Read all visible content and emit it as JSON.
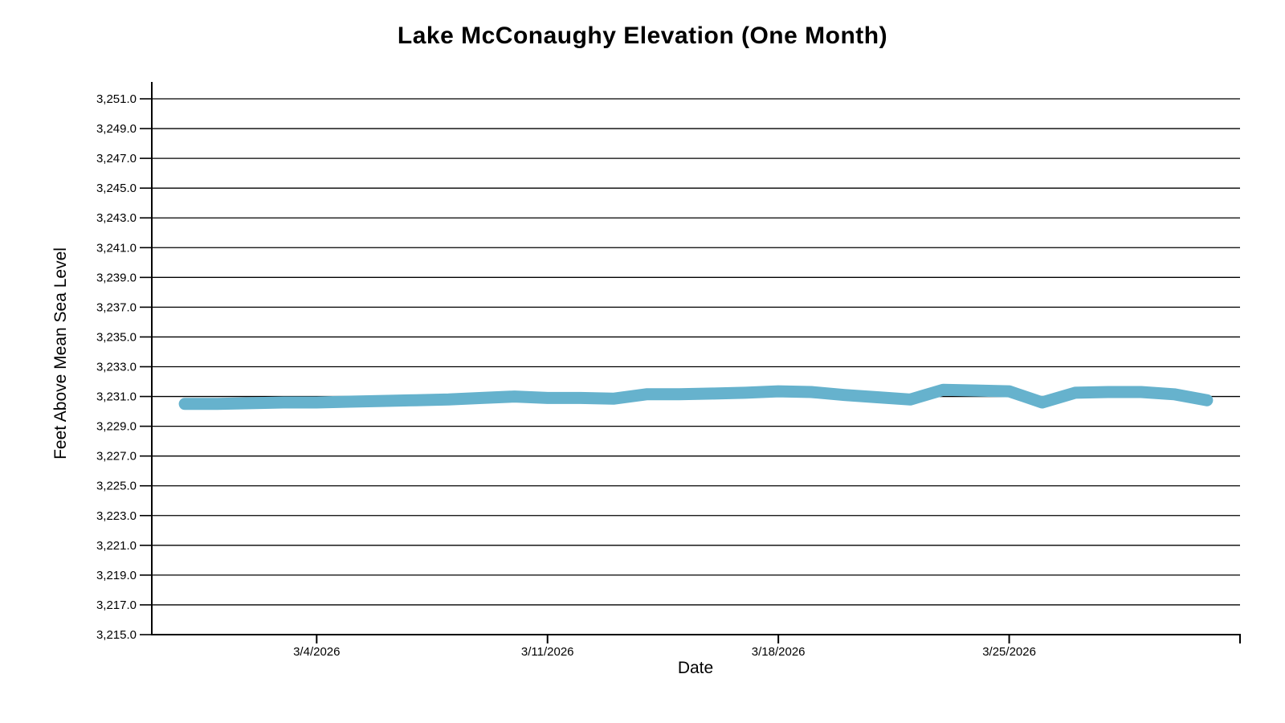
{
  "chart_data": {
    "type": "line",
    "title": "Lake McConaughy Elevation (One Month)",
    "xlabel": "Date",
    "ylabel": "Feet Above Mean Sea Level",
    "legend": "none",
    "grid": "horizontal",
    "colors": {
      "line": "#66b2cd",
      "grid": "#000000",
      "axis": "#000000",
      "text": "#000000",
      "background": "#ffffff"
    },
    "y_axis": {
      "min": 3215,
      "max": 3251,
      "step": 2,
      "tick_labels": [
        "3,215.0",
        "3,217.0",
        "3,219.0",
        "3,221.0",
        "3,223.0",
        "3,225.0",
        "3,227.0",
        "3,229.0",
        "3,231.0",
        "3,233.0",
        "3,235.0",
        "3,237.0",
        "3,239.0",
        "3,241.0",
        "3,243.0",
        "3,245.0",
        "3,247.0",
        "3,249.0",
        "3,251.0"
      ]
    },
    "x_axis": {
      "start_date": "2/27/2026",
      "end_date": "4/1/2026",
      "total_days": 33,
      "ticks": [
        {
          "label": "3/4/2026",
          "day": 5
        },
        {
          "label": "3/11/2026",
          "day": 12
        },
        {
          "label": "3/18/2026",
          "day": 19
        },
        {
          "label": "3/25/2026",
          "day": 26
        }
      ],
      "end_tick_day": 33
    },
    "series": [
      {
        "name": "Lake McConaughy Elevation",
        "color": "#66b2cd",
        "first_point_day": 1,
        "dates": [
          "2/28/2026",
          "3/1/2026",
          "3/2/2026",
          "3/3/2026",
          "3/4/2026",
          "3/5/2026",
          "3/6/2026",
          "3/7/2026",
          "3/8/2026",
          "3/9/2026",
          "3/10/2026",
          "3/11/2026",
          "3/12/2026",
          "3/13/2026",
          "3/14/2026",
          "3/15/2026",
          "3/16/2026",
          "3/17/2026",
          "3/18/2026",
          "3/19/2026",
          "3/20/2026",
          "3/21/2026",
          "3/22/2026",
          "3/23/2026",
          "3/24/2026",
          "3/25/2026",
          "3/26/2026",
          "3/27/2026",
          "3/28/2026",
          "3/29/2026",
          "3/30/2026",
          "3/31/2026"
        ],
        "values": [
          3230.5,
          3230.5,
          3230.55,
          3230.6,
          3230.6,
          3230.65,
          3230.7,
          3230.75,
          3230.8,
          3230.9,
          3231.0,
          3230.9,
          3230.9,
          3230.85,
          3231.15,
          3231.15,
          3231.2,
          3231.25,
          3231.35,
          3231.3,
          3231.1,
          3230.95,
          3230.8,
          3231.45,
          3231.4,
          3231.35,
          3230.6,
          3231.25,
          3231.3,
          3231.3,
          3231.15,
          3230.75
        ]
      }
    ]
  }
}
